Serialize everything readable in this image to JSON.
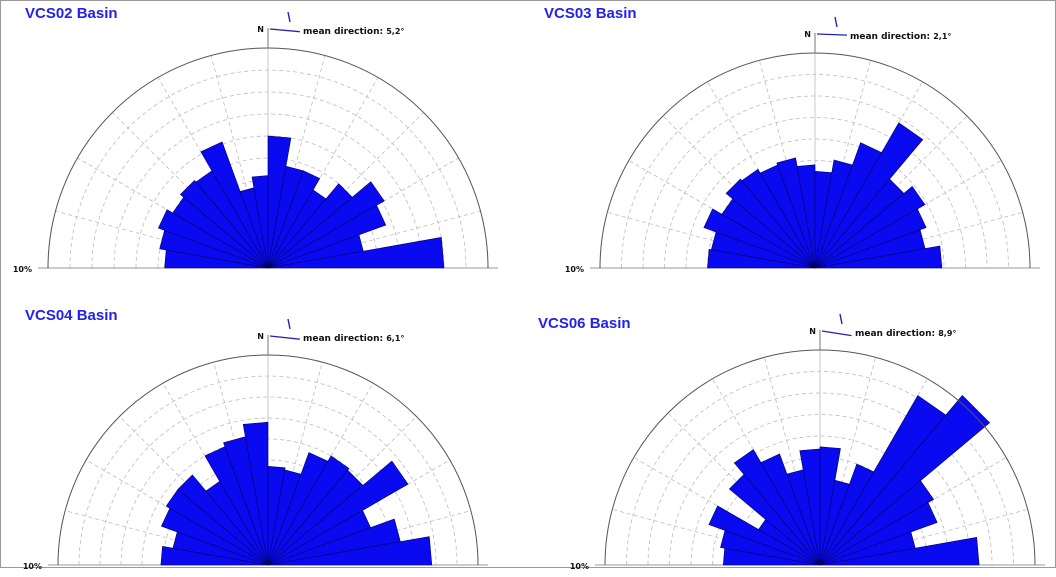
{
  "figure": {
    "colors": {
      "petal": "#0a0af0",
      "petal_stroke": "#000066",
      "title": "#2222ee",
      "mean_arrow": "#2222bb",
      "grid": "#bdbdbd"
    }
  },
  "chart_data": [
    {
      "type": "rose",
      "title": "VCS02 Basin",
      "north_label": "N",
      "mean_direction_label": "mean direction:",
      "mean_direction_value": "5,2°",
      "mean_direction_deg": 5.2,
      "scale_label": "10%",
      "r_max_percent": 10,
      "bin_width_deg": 10,
      "bin_start_deg": [
        -90,
        -80,
        -70,
        -60,
        -50,
        -40,
        -30,
        -20,
        -10,
        0,
        10,
        20,
        30,
        40,
        50,
        60,
        70,
        80
      ],
      "values": [
        4.7,
        5.0,
        5.3,
        5.0,
        5.2,
        5.1,
        6.1,
        3.7,
        4.2,
        6.0,
        4.7,
        4.7,
        4.1,
        5.0,
        6.1,
        5.7,
        4.4,
        8.0
      ]
    },
    {
      "type": "rose",
      "title": "VCS03 Basin",
      "north_label": "N",
      "mean_direction_label": "mean direction:",
      "mean_direction_value": "2,1°",
      "mean_direction_deg": 2.1,
      "scale_label": "10%",
      "r_max_percent": 10,
      "bin_width_deg": 10,
      "bin_start_deg": [
        -90,
        -80,
        -70,
        -60,
        -50,
        -40,
        -30,
        -20,
        -10,
        0,
        10,
        20,
        30,
        40,
        50,
        60,
        70,
        80
      ],
      "values": [
        5.0,
        4.9,
        5.5,
        5.0,
        5.4,
        5.3,
        5.1,
        5.2,
        4.8,
        4.5,
        5.1,
        6.2,
        7.8,
        5.4,
        5.9,
        5.5,
        5.2,
        5.9
      ]
    },
    {
      "type": "rose",
      "title": "VCS04 Basin",
      "north_label": "N",
      "mean_direction_label": "mean direction:",
      "mean_direction_value": "6,1°",
      "mean_direction_deg": 6.1,
      "scale_label": "10%",
      "r_max_percent": 10,
      "bin_width_deg": 10,
      "bin_start_deg": [
        -90,
        -80,
        -70,
        -60,
        -50,
        -40,
        -30,
        -20,
        -10,
        0,
        10,
        20,
        30,
        40,
        50,
        60,
        70,
        80
      ],
      "values": [
        5.1,
        4.6,
        5.4,
        5.6,
        5.6,
        4.6,
        6.0,
        6.2,
        6.8,
        4.7,
        4.6,
        5.7,
        6.0,
        5.9,
        7.7,
        5.2,
        6.4,
        7.8
      ]
    },
    {
      "type": "rose",
      "title": "VCS06 Basin",
      "north_label": "N",
      "mean_direction_label": "mean direction:",
      "mean_direction_value": "8,9°",
      "mean_direction_deg": 8.9,
      "scale_label": "10%",
      "r_max_percent": 10,
      "bin_width_deg": 10,
      "bin_start_deg": [
        -90,
        -80,
        -70,
        -60,
        -50,
        -40,
        -30,
        -20,
        -10,
        0,
        10,
        20,
        30,
        40,
        50,
        60,
        70,
        80
      ],
      "values": [
        4.5,
        4.7,
        5.5,
        3.3,
        5.5,
        6.2,
        5.5,
        4.5,
        5.4,
        5.5,
        4.0,
        5.0,
        9.1,
        10.3,
        6.1,
        5.8,
        4.5,
        7.4
      ]
    }
  ]
}
